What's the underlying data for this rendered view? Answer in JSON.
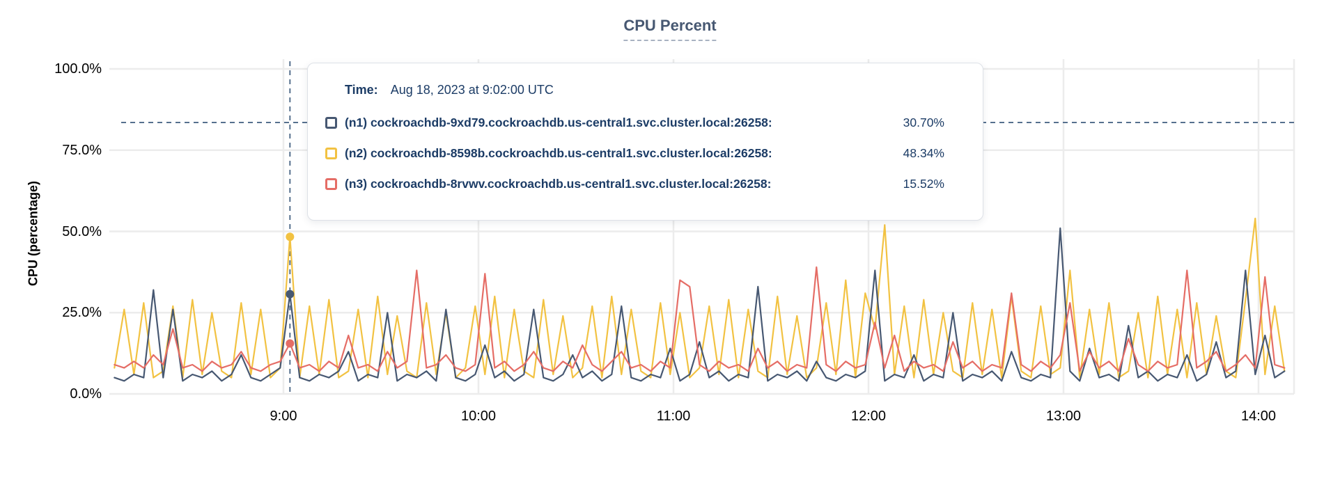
{
  "tooltip": {
    "time_label": "Time:",
    "time_value": "Aug 18, 2023 at 9:02:00 UTC",
    "series": [
      {
        "label": "(n1) cockroachdb-9xd79.cockroachdb.us-central1.svc.cluster.local:26258:",
        "value": "30.70%",
        "color": "#475872"
      },
      {
        "label": "(n2) cockroachdb-8598b.cockroachdb.us-central1.svc.cluster.local:26258:",
        "value": "48.34%",
        "color": "#f2c242"
      },
      {
        "label": "(n3) cockroachdb-8rvwv.cockroachdb.us-central1.svc.cluster.local:26258:",
        "value": "15.52%",
        "color": "#e56d66"
      }
    ]
  },
  "chart_data": {
    "type": "line",
    "title": "CPU Percent",
    "ylabel": "CPU (percentage)",
    "ylim": [
      0,
      100
    ],
    "grid": true,
    "y_ticks": [
      {
        "value": 0,
        "label": "0.0%"
      },
      {
        "value": 25,
        "label": "25.0%"
      },
      {
        "value": 50,
        "label": "50.0%"
      },
      {
        "value": 75,
        "label": "75.0%"
      },
      {
        "value": 100,
        "label": "100.0%"
      }
    ],
    "x_ticks": [
      {
        "hour": 9,
        "label": "9:00"
      },
      {
        "hour": 10,
        "label": "10:00"
      },
      {
        "hour": 11,
        "label": "11:00"
      },
      {
        "hour": 12,
        "label": "12:00"
      },
      {
        "hour": 13,
        "label": "13:00"
      },
      {
        "hour": 14,
        "label": "14:00"
      }
    ],
    "xlim_hours": [
      8.107,
      14.182
    ],
    "x_start_hour": 8.1333,
    "x_step_hours": 0.05,
    "cursor": {
      "hour": 9.0333,
      "time": "Aug 18, 2023 at 9:02:00 UTC",
      "hline_percent": 83.5,
      "points": [
        {
          "series": 0,
          "value": 30.7
        },
        {
          "series": 1,
          "value": 48.34
        },
        {
          "series": 2,
          "value": 15.52
        }
      ]
    },
    "series": [
      {
        "name": "(n1) cockroachdb-9xd79.cockroachdb.us-central1.svc.cluster.local:26258",
        "node": "n1",
        "color": "#475872",
        "values": [
          5,
          4,
          6,
          5,
          32,
          5,
          26,
          4,
          6,
          5,
          7,
          4,
          6,
          12,
          5,
          4,
          6,
          8,
          30.7,
          5,
          4,
          6,
          5,
          7,
          13,
          4,
          6,
          5,
          25,
          4,
          6,
          5,
          7,
          4,
          26,
          5,
          4,
          6,
          15,
          5,
          7,
          4,
          6,
          26,
          5,
          4,
          6,
          12,
          5,
          7,
          4,
          6,
          27,
          5,
          4,
          6,
          5,
          14,
          4,
          6,
          16,
          5,
          7,
          4,
          6,
          5,
          33,
          4,
          6,
          5,
          7,
          4,
          10,
          5,
          4,
          6,
          5,
          7,
          38,
          4,
          6,
          5,
          12,
          4,
          6,
          5,
          25,
          4,
          6,
          5,
          7,
          4,
          13,
          5,
          4,
          6,
          5,
          51,
          7,
          4,
          14,
          5,
          6,
          4,
          21,
          5,
          7,
          4,
          6,
          5,
          12,
          4,
          6,
          16,
          5,
          7,
          38,
          6,
          18,
          5,
          7
        ]
      },
      {
        "name": "(n2) cockroachdb-8598b.cockroachdb.us-central1.svc.cluster.local:26258",
        "node": "n2",
        "color": "#f2c242",
        "values": [
          8,
          26,
          6,
          28,
          5,
          7,
          27,
          5,
          29,
          6,
          25,
          7,
          5,
          28,
          6,
          26,
          5,
          8,
          48.34,
          5,
          27,
          6,
          29,
          5,
          7,
          26,
          5,
          30,
          6,
          24,
          7,
          5,
          28,
          6,
          25,
          5,
          8,
          27,
          6,
          30,
          5,
          26,
          7,
          5,
          29,
          6,
          24,
          5,
          8,
          27,
          5,
          30,
          6,
          26,
          7,
          5,
          28,
          6,
          25,
          5,
          8,
          27,
          6,
          29,
          5,
          26,
          7,
          5,
          30,
          6,
          24,
          5,
          8,
          28,
          6,
          35,
          5,
          31,
          20,
          52,
          6,
          27,
          5,
          29,
          6,
          25,
          7,
          5,
          28,
          6,
          26,
          5,
          30,
          7,
          5,
          27,
          6,
          8,
          38,
          5,
          26,
          6,
          28,
          5,
          7,
          25,
          5,
          30,
          6,
          26,
          5,
          28,
          6,
          24,
          7,
          5,
          29,
          54,
          6,
          27,
          7
        ]
      },
      {
        "name": "(n3) cockroachdb-8rvwv.cockroachdb.us-central1.svc.cluster.local:26258",
        "node": "n3",
        "color": "#e56d66",
        "values": [
          9,
          8,
          10,
          8,
          12,
          9,
          20,
          8,
          9,
          7,
          10,
          8,
          9,
          13,
          8,
          7,
          9,
          10,
          15.52,
          8,
          9,
          7,
          10,
          8,
          18,
          8,
          9,
          7,
          13,
          8,
          10,
          38,
          8,
          9,
          12,
          8,
          7,
          9,
          37,
          8,
          10,
          7,
          9,
          13,
          8,
          7,
          10,
          8,
          15,
          9,
          7,
          10,
          13,
          8,
          9,
          7,
          10,
          8,
          35,
          33,
          9,
          7,
          10,
          8,
          9,
          7,
          14,
          8,
          10,
          7,
          9,
          8,
          39,
          9,
          7,
          10,
          8,
          9,
          22,
          8,
          18,
          7,
          10,
          8,
          9,
          7,
          16,
          8,
          10,
          7,
          9,
          8,
          31,
          9,
          7,
          10,
          8,
          12,
          28,
          7,
          13,
          8,
          10,
          7,
          17,
          9,
          7,
          10,
          8,
          9,
          38,
          8,
          10,
          13,
          7,
          9,
          12,
          8,
          36,
          9,
          8
        ]
      }
    ]
  }
}
